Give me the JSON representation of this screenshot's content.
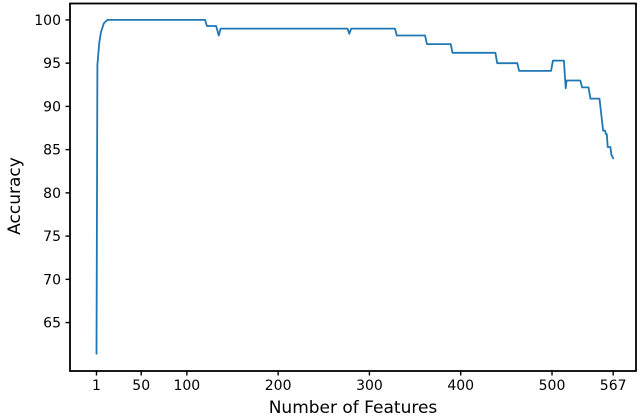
{
  "figure": {
    "background": "#ffffff"
  },
  "chart_data": {
    "type": "line",
    "title": "",
    "xlabel": "Number of Features",
    "ylabel": "Accuracy",
    "xlim": [
      -28,
      592
    ],
    "ylim": [
      59.4,
      101.9
    ],
    "xticks": [
      1,
      50,
      100,
      200,
      300,
      400,
      500,
      567
    ],
    "yticks": [
      65,
      70,
      75,
      80,
      85,
      90,
      95,
      100
    ],
    "grid": false,
    "legend": "none",
    "line_color": "#1f77b4",
    "axis_color": "#000000",
    "series": [
      {
        "name": "accuracy-vs-features",
        "points": [
          [
            1,
            61.4
          ],
          [
            2,
            94.8
          ],
          [
            4,
            97.3
          ],
          [
            6,
            98.6
          ],
          [
            9,
            99.6
          ],
          [
            13,
            100
          ],
          [
            120,
            100
          ],
          [
            122,
            99.3
          ],
          [
            132,
            99.3
          ],
          [
            135,
            98.2
          ],
          [
            137,
            99.0
          ],
          [
            276,
            99.0
          ],
          [
            278,
            98.4
          ],
          [
            280,
            99.0
          ],
          [
            328,
            99.0
          ],
          [
            330,
            98.2
          ],
          [
            361,
            98.2
          ],
          [
            363,
            97.2
          ],
          [
            389,
            97.2
          ],
          [
            391,
            96.2
          ],
          [
            438,
            96.2
          ],
          [
            440,
            95.0
          ],
          [
            462,
            95.0
          ],
          [
            464,
            94.1
          ],
          [
            499,
            94.1
          ],
          [
            501,
            95.3
          ],
          [
            513,
            95.3
          ],
          [
            515,
            92.1
          ],
          [
            516,
            93.0
          ],
          [
            531,
            93.0
          ],
          [
            533,
            92.2
          ],
          [
            540,
            92.2
          ],
          [
            542,
            90.9
          ],
          [
            552,
            90.9
          ],
          [
            556,
            87.2
          ],
          [
            558,
            87.2
          ],
          [
            559,
            86.8
          ],
          [
            560,
            86.8
          ],
          [
            561,
            85.3
          ],
          [
            564,
            85.3
          ],
          [
            565,
            84.4
          ],
          [
            567,
            84.0
          ]
        ]
      }
    ]
  }
}
